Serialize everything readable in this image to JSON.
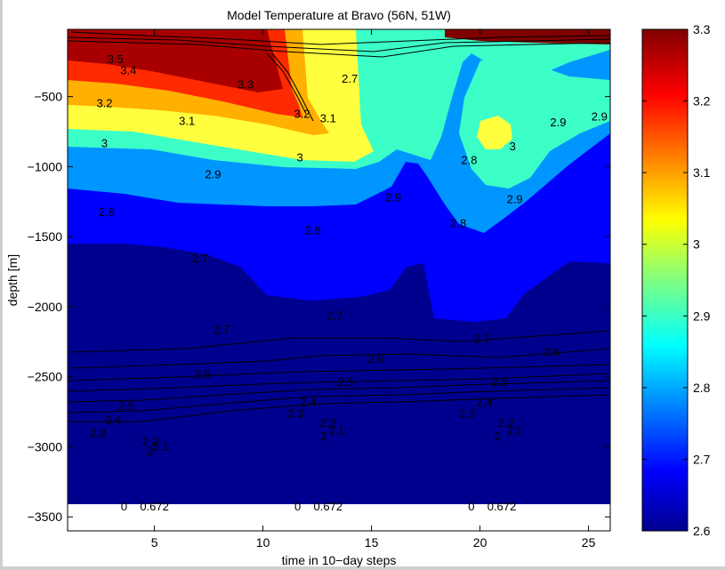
{
  "chart_data": {
    "type": "heatmap",
    "title": "Model Temperature at Bravo (56N, 51W)",
    "xlabel": "time in 10−day steps",
    "ylabel": "depth [m]",
    "xlim": [
      1,
      26
    ],
    "ylim": [
      -3600,
      -20
    ],
    "xticks": [
      {
        "value": 5,
        "label": "5"
      },
      {
        "value": 10,
        "label": "10"
      },
      {
        "value": 15,
        "label": "15"
      },
      {
        "value": 20,
        "label": "20"
      },
      {
        "value": 25,
        "label": "25"
      }
    ],
    "yticks": [
      {
        "value": -500,
        "label": "−500"
      },
      {
        "value": -1000,
        "label": "−1000"
      },
      {
        "value": -1500,
        "label": "−1500"
      },
      {
        "value": -2000,
        "label": "−2000"
      },
      {
        "value": -2500,
        "label": "−2500"
      },
      {
        "value": -3000,
        "label": "−3000"
      },
      {
        "value": -3500,
        "label": "−3500"
      }
    ],
    "colorbar": {
      "min": 2.6,
      "max": 3.3,
      "ticks": [
        {
          "value": 2.6,
          "label": "2.6"
        },
        {
          "value": 2.7,
          "label": "2.7"
        },
        {
          "value": 2.8,
          "label": "2.8"
        },
        {
          "value": 2.9,
          "label": "2.9"
        },
        {
          "value": 3.0,
          "label": "3"
        },
        {
          "value": 3.1,
          "label": "3.1"
        },
        {
          "value": 3.2,
          "label": "3.2"
        },
        {
          "value": 3.3,
          "label": "3.3"
        }
      ],
      "colormap": "jet"
    },
    "contour_labels": [
      {
        "text": "3.5",
        "x": 3.2,
        "y": -230
      },
      {
        "text": "3.4",
        "x": 3.8,
        "y": -310
      },
      {
        "text": "3.3",
        "x": 9.2,
        "y": -410
      },
      {
        "text": "3.2",
        "x": 2.7,
        "y": -545
      },
      {
        "text": "3.2",
        "x": 11.8,
        "y": -620
      },
      {
        "text": "3.1",
        "x": 6.5,
        "y": -670
      },
      {
        "text": "3.1",
        "x": 13.0,
        "y": -650
      },
      {
        "text": "3",
        "x": 2.7,
        "y": -830
      },
      {
        "text": "3",
        "x": 11.7,
        "y": -930
      },
      {
        "text": "3",
        "x": 21.5,
        "y": -850
      },
      {
        "text": "2.9",
        "x": 7.7,
        "y": -1050
      },
      {
        "text": "2.9",
        "x": 16.0,
        "y": -1215
      },
      {
        "text": "2.9",
        "x": 21.6,
        "y": -1230
      },
      {
        "text": "2.9",
        "x": 25.5,
        "y": -640
      },
      {
        "text": "2.9",
        "x": 23.6,
        "y": -680
      },
      {
        "text": "2.8",
        "x": 2.8,
        "y": -1320
      },
      {
        "text": "2.8",
        "x": 12.3,
        "y": -1450
      },
      {
        "text": "2.8",
        "x": 19.0,
        "y": -1400
      },
      {
        "text": "2.8",
        "x": 19.5,
        "y": -950
      },
      {
        "text": "2.7",
        "x": 7.1,
        "y": -1650
      },
      {
        "text": "2.7",
        "x": 13.3,
        "y": -2060
      },
      {
        "text": "2.7",
        "x": 8.1,
        "y": -2160
      },
      {
        "text": "2.7",
        "x": 20.1,
        "y": -2225
      },
      {
        "text": "2.7",
        "x": 14.0,
        "y": -370
      },
      {
        "text": "2.6",
        "x": 15.2,
        "y": -2370
      },
      {
        "text": "2.6",
        "x": 23.3,
        "y": -2320
      },
      {
        "text": "2.6",
        "x": 7.2,
        "y": -2480
      },
      {
        "text": "2.5",
        "x": 3.7,
        "y": -2705
      },
      {
        "text": "2.5",
        "x": 13.8,
        "y": -2535
      },
      {
        "text": "2.5",
        "x": 20.9,
        "y": -2535
      },
      {
        "text": "2.4",
        "x": 3.1,
        "y": -2805
      },
      {
        "text": "2.4",
        "x": 12.1,
        "y": -2680
      },
      {
        "text": "2.4",
        "x": 20.2,
        "y": -2680
      },
      {
        "text": "2.3",
        "x": 2.4,
        "y": -2900
      },
      {
        "text": "2.3",
        "x": 11.5,
        "y": -2760
      },
      {
        "text": "2.3",
        "x": 19.4,
        "y": -2760
      },
      {
        "text": "2.2",
        "x": 4.8,
        "y": -2960
      },
      {
        "text": "2.2",
        "x": 13.0,
        "y": -2825
      },
      {
        "text": "2.2",
        "x": 21.2,
        "y": -2825
      },
      {
        "text": "2.1",
        "x": 5.3,
        "y": -2995
      },
      {
        "text": "2.1",
        "x": 13.4,
        "y": -2880
      },
      {
        "text": "2.1",
        "x": 21.6,
        "y": -2880
      },
      {
        "text": "2",
        "x": 4.8,
        "y": -3030
      },
      {
        "text": "2",
        "x": 12.8,
        "y": -2920
      },
      {
        "text": "2",
        "x": 20.8,
        "y": -2920
      }
    ],
    "bottom_annotations": [
      {
        "text": "0",
        "x": 3.6
      },
      {
        "text": "0.672",
        "x": 5.0
      },
      {
        "text": "0",
        "x": 11.6
      },
      {
        "text": "0.672",
        "x": 13.0
      },
      {
        "text": "0",
        "x": 19.6
      },
      {
        "text": "0.672",
        "x": 21.0
      }
    ]
  }
}
